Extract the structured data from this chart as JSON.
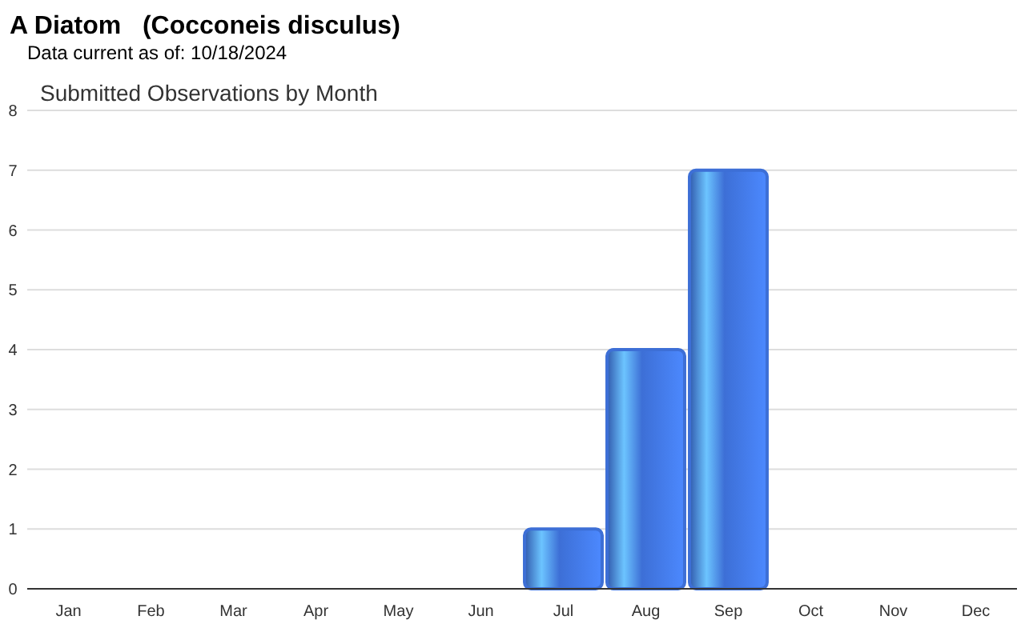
{
  "chart_data": {
    "type": "bar",
    "title": "A Diatom   (Cocconeis disculus)",
    "subtitle": "Data current as of: 10/18/2024",
    "annotations": [
      "Submitted Observations by Month"
    ],
    "categories": [
      "Jan",
      "Feb",
      "Mar",
      "Apr",
      "May",
      "Jun",
      "Jul",
      "Aug",
      "Sep",
      "Oct",
      "Nov",
      "Dec"
    ],
    "values": [
      0,
      0,
      0,
      0,
      0,
      0,
      1,
      4,
      7,
      0,
      0,
      0
    ],
    "color": "#3d6fd6",
    "ylim": [
      0,
      8
    ],
    "yticks": [
      0,
      1,
      2,
      3,
      4,
      5,
      6,
      7,
      8
    ],
    "grid": "y"
  }
}
